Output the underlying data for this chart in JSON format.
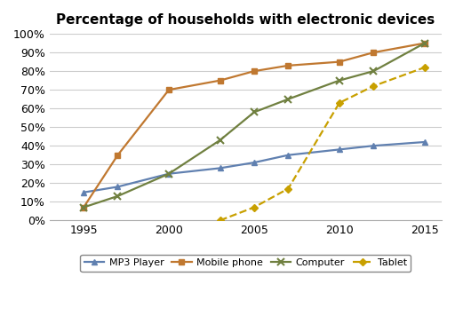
{
  "title": "Percentage of households with electronic devices",
  "years": [
    1995,
    1997,
    2000,
    2003,
    2005,
    2007,
    2010,
    2012,
    2015
  ],
  "mp3_player": [
    15,
    18,
    25,
    28,
    31,
    35,
    38,
    40,
    42
  ],
  "mobile_phone": [
    7,
    35,
    70,
    75,
    80,
    83,
    85,
    90,
    95
  ],
  "computer": [
    7,
    13,
    25,
    43,
    58,
    65,
    75,
    80,
    95
  ],
  "tablet": [
    null,
    null,
    null,
    0,
    7,
    17,
    63,
    72,
    82
  ],
  "mp3_color": "#6080B0",
  "mobile_color": "#C07830",
  "computer_color": "#708040",
  "tablet_color": "#C8A000",
  "ylim": [
    0,
    100
  ],
  "xlim": [
    1993,
    2016
  ],
  "yticks": [
    0,
    10,
    20,
    30,
    40,
    50,
    60,
    70,
    80,
    90,
    100
  ],
  "xticks": [
    1995,
    2000,
    2005,
    2010,
    2015
  ],
  "legend_labels": [
    "MP3 Player",
    "Mobile phone",
    "Computer",
    "Tablet"
  ],
  "background_color": "#ffffff",
  "grid_color": "#cccccc",
  "title_fontsize": 11,
  "tick_fontsize": 9,
  "legend_fontsize": 8
}
